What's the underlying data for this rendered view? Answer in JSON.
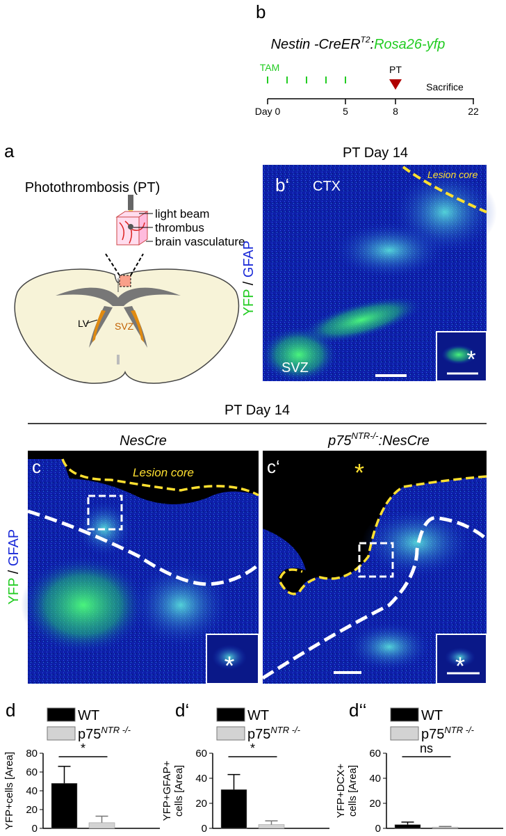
{
  "panel_b": {
    "label": "b",
    "title": {
      "gene": "Nestin -CreER",
      "sup": "T2",
      "sep": ":",
      "reporter": "Rosa26-yfp"
    },
    "tam": "TAM",
    "pt": "PT",
    "sacrifice": "Sacrifice",
    "days": [
      "Day 0",
      "5",
      "8",
      "22"
    ]
  },
  "panel_a": {
    "label": "a",
    "title": "Photothrombosis (PT)",
    "callouts": [
      "light beam",
      "thrombus",
      "brain vasculature"
    ],
    "regions": [
      "LV",
      "SVZ"
    ]
  },
  "panel_b_prime": {
    "label": "b‘",
    "title": "PT Day 14",
    "regions": [
      "CTX",
      "SVZ"
    ],
    "lesion": "Lesion core",
    "inset_mark": "*",
    "stain": [
      "YFP",
      " / ",
      "GFAP"
    ]
  },
  "panel_c": {
    "title": "PT Day 14",
    "stain": [
      "YFP",
      " / ",
      "GFAP"
    ],
    "left": {
      "label": "c",
      "title": "NesCre",
      "lesion": "Lesion core",
      "inset_mark": "*"
    },
    "right": {
      "label": "c‘",
      "title": {
        "gene": "p75",
        "sup": "NTR-/-",
        "rest": ":NesCre"
      },
      "lesion_mark": "*",
      "inset_mark": "*"
    }
  },
  "chart_data": [
    {
      "type": "bar",
      "label": "d",
      "ylabel": [
        "YFP+cells [Area]"
      ],
      "categories": [
        null
      ],
      "series": [
        {
          "name": "WT",
          "color": "#000000",
          "values": [
            48
          ],
          "errors": [
            18
          ]
        },
        {
          "name": "p75",
          "name_sup": "NTR -/-",
          "color": "#d3d3d3",
          "values": [
            6
          ],
          "errors": [
            7
          ]
        }
      ],
      "ylim": [
        0,
        80
      ],
      "yticks": [
        0,
        20,
        40,
        60,
        80
      ],
      "annotation": "*"
    },
    {
      "type": "bar",
      "label": "d‘",
      "ylabel": [
        "YFP+GFAP+",
        "cells [Area]"
      ],
      "categories": [
        null
      ],
      "series": [
        {
          "name": "WT",
          "color": "#000000",
          "values": [
            31
          ],
          "errors": [
            12
          ]
        },
        {
          "name": "p75",
          "name_sup": "NTR -/-",
          "color": "#d3d3d3",
          "values": [
            3
          ],
          "errors": [
            3
          ]
        }
      ],
      "ylim": [
        0,
        60
      ],
      "yticks": [
        0,
        20,
        40,
        60
      ],
      "annotation": "*"
    },
    {
      "type": "bar",
      "label": "d‘‘",
      "ylabel": [
        "YFP+DCX+",
        "cells [Area]"
      ],
      "categories": [
        null
      ],
      "series": [
        {
          "name": "WT",
          "color": "#000000",
          "values": [
            3
          ],
          "errors": [
            2
          ]
        },
        {
          "name": "p75",
          "name_sup": "NTR -/-",
          "color": "#d3d3d3",
          "values": [
            1
          ],
          "errors": [
            0.5
          ]
        }
      ],
      "ylim": [
        0,
        60
      ],
      "yticks": [
        0,
        20,
        40,
        60
      ],
      "annotation": "ns"
    }
  ]
}
